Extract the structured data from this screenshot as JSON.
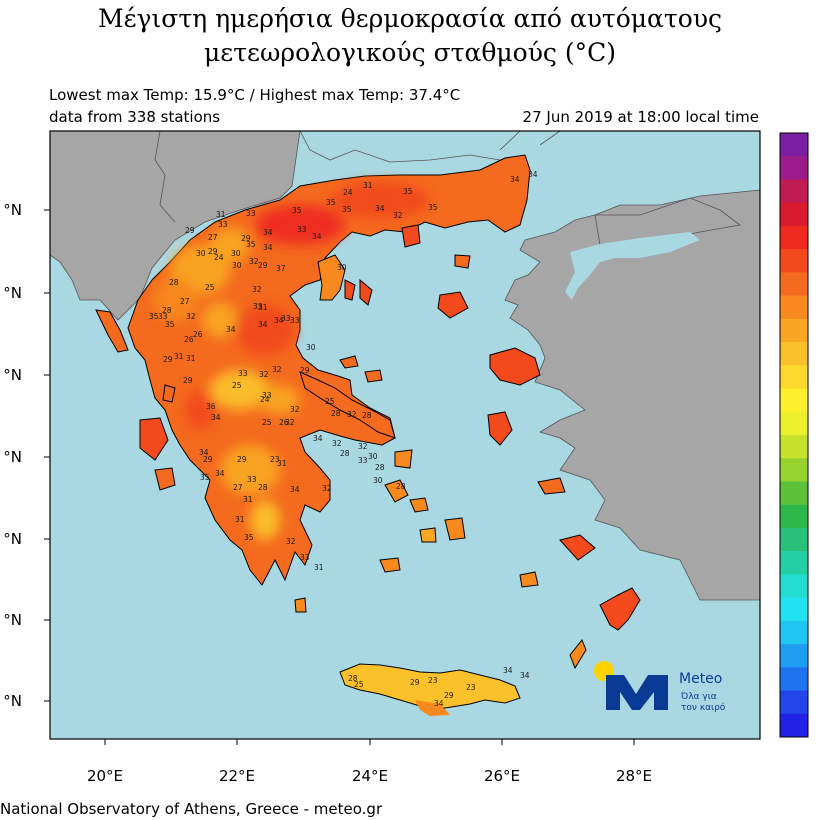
{
  "title": {
    "line1": "Μέγιστη ημερήσια θερμοκρασία από αυτόματους",
    "line2": "μετεωρολογικούς σταθμούς (°C)"
  },
  "info": {
    "low_high": "Lowest max Temp: 15.9°C / Highest max Temp: 37.4°C",
    "stations": "data from 338 stations",
    "datetime": "27 Jun 2019 at 18:00 local time"
  },
  "map": {
    "lon_labels": [
      "20°E",
      "22°E",
      "24°E",
      "26°E",
      "28°E"
    ],
    "lat_labels": [
      "°N",
      "°N",
      "°N",
      "°N",
      "°N",
      "°N",
      "°N"
    ],
    "colors": {
      "sea": "#a9d8e3",
      "land_other": "#a6a6a6",
      "border": "#555555",
      "coast": "#000000"
    }
  },
  "colorbar": {
    "colors": [
      "#7a1fa2",
      "#9c1b8a",
      "#c01b52",
      "#d81b2e",
      "#ef2b20",
      "#f24a1c",
      "#f46a1e",
      "#f7891e",
      "#f9a623",
      "#fbc12a",
      "#fdd82c",
      "#fdef2c",
      "#eaf02b",
      "#c6e22b",
      "#96d32e",
      "#5dc23a",
      "#2fb84a",
      "#29c07a",
      "#25cfa6",
      "#22ddd0",
      "#21e2f0",
      "#1fc6f2",
      "#1e9ef0",
      "#1f73ee",
      "#2246ea",
      "#2222e6"
    ]
  },
  "stations_labels": [
    {
      "v": "34"
    },
    {
      "v": "34"
    },
    {
      "v": "31"
    },
    {
      "v": "35"
    },
    {
      "v": "24"
    },
    {
      "v": "35"
    },
    {
      "v": "35"
    },
    {
      "v": "32"
    },
    {
      "v": "35"
    },
    {
      "v": "34"
    },
    {
      "v": "33"
    },
    {
      "v": "29"
    },
    {
      "v": "27"
    },
    {
      "v": "29"
    },
    {
      "v": "24"
    },
    {
      "v": "30"
    },
    {
      "v": "30"
    },
    {
      "v": "29"
    },
    {
      "v": "31"
    },
    {
      "v": "33"
    },
    {
      "v": "34"
    },
    {
      "v": "34"
    },
    {
      "v": "34"
    },
    {
      "v": "29"
    },
    {
      "v": "37"
    },
    {
      "v": "35"
    },
    {
      "v": "35"
    },
    {
      "v": "33"
    },
    {
      "v": "30"
    },
    {
      "v": "30"
    },
    {
      "v": "32"
    },
    {
      "v": "32"
    },
    {
      "v": "33"
    },
    {
      "v": "28"
    },
    {
      "v": "25"
    },
    {
      "v": "27"
    },
    {
      "v": "32"
    },
    {
      "v": "26"
    },
    {
      "v": "34"
    },
    {
      "v": "31"
    },
    {
      "v": "33"
    },
    {
      "v": "34"
    },
    {
      "v": "34"
    },
    {
      "v": "33"
    },
    {
      "v": "31"
    },
    {
      "v": "28"
    },
    {
      "v": "33"
    },
    {
      "v": "35"
    },
    {
      "v": "26"
    },
    {
      "v": "30"
    },
    {
      "v": "29"
    },
    {
      "v": "35"
    },
    {
      "v": "29"
    },
    {
      "v": "32"
    },
    {
      "v": "25"
    },
    {
      "v": "24"
    },
    {
      "v": "32"
    },
    {
      "v": "25"
    },
    {
      "v": "28"
    },
    {
      "v": "32"
    },
    {
      "v": "28"
    },
    {
      "v": "36"
    },
    {
      "v": "34"
    },
    {
      "v": "31"
    },
    {
      "v": "29"
    },
    {
      "v": "26"
    },
    {
      "v": "32"
    },
    {
      "v": "25"
    },
    {
      "v": "33"
    },
    {
      "v": "33"
    },
    {
      "v": "32"
    },
    {
      "v": "34"
    },
    {
      "v": "29"
    },
    {
      "v": "29"
    },
    {
      "v": "23"
    },
    {
      "v": "35"
    },
    {
      "v": "34"
    },
    {
      "v": "31"
    },
    {
      "v": "33"
    },
    {
      "v": "28"
    },
    {
      "v": "27"
    },
    {
      "v": "34"
    },
    {
      "v": "32"
    },
    {
      "v": "31"
    },
    {
      "v": "31"
    },
    {
      "v": "35"
    },
    {
      "v": "32"
    },
    {
      "v": "33"
    },
    {
      "v": "31"
    },
    {
      "v": "28"
    },
    {
      "v": "28"
    },
    {
      "v": "32"
    },
    {
      "v": "32"
    },
    {
      "v": "33"
    },
    {
      "v": "30"
    },
    {
      "v": "30"
    },
    {
      "v": "28"
    },
    {
      "v": "28"
    },
    {
      "v": "25"
    },
    {
      "v": "29"
    },
    {
      "v": "23"
    },
    {
      "v": "29"
    },
    {
      "v": "23"
    },
    {
      "v": "34"
    },
    {
      "v": "34"
    },
    {
      "v": "34"
    },
    {
      "v": "34"
    }
  ],
  "logo": {
    "name": "Meteo",
    "tagline1": "Όλα για",
    "tagline2": "τον καιρό",
    "colors": {
      "m": "#0a3b94",
      "sun": "#fbd400"
    }
  },
  "footer": "National Observatory of Athens, Greece - meteo.gr"
}
